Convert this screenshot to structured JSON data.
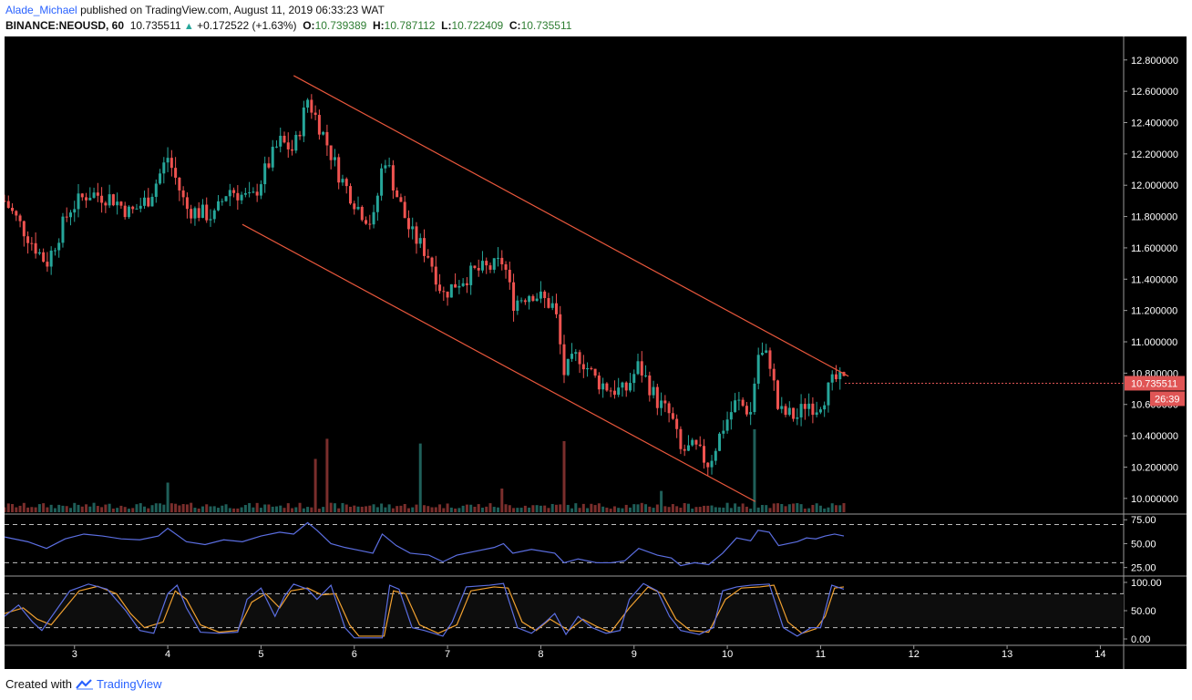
{
  "header": {
    "author": "Alade_Michael",
    "published_text": "published on TradingView.com, August 11, 2019 06:33:23 WAT",
    "symbol": "BINANCE:NEOUSD, 60",
    "last": "10.735511",
    "change": "+0.172522 (+1.63%)",
    "o_label": "O:",
    "o_value": "10.739389",
    "h_label": "H:",
    "h_value": "10.787112",
    "l_label": "L:",
    "l_value": "10.722409",
    "c_label": "C:",
    "c_value": "10.735511"
  },
  "footer": {
    "created_with": "Created with",
    "brand": "TradingView"
  },
  "colors": {
    "background": "#000000",
    "up": "#26a69a",
    "down": "#ef5350",
    "channel": "#e8573c",
    "rsi": "#5b6ee1",
    "stoch_k": "#5b6ee1",
    "stoch_d": "#f0a030",
    "price_tag": "#e05555"
  },
  "chart_data": {
    "type": "candlestick",
    "title": "BINANCE:NEOUSD, 60",
    "price_axis": {
      "ylim": [
        9.9,
        12.95
      ],
      "ticks": [
        "12.800000",
        "12.600000",
        "12.400000",
        "12.200000",
        "12.000000",
        "11.800000",
        "11.600000",
        "11.400000",
        "11.200000",
        "11.000000",
        "10.800000",
        "10.600000",
        "10.400000",
        "10.200000",
        "10.000000"
      ]
    },
    "last_price_tag": "10.735511",
    "countdown_tag": "26:39",
    "x_axis": {
      "ticks": [
        "3",
        "4",
        "5",
        "6",
        "7",
        "8",
        "9",
        "10",
        "11",
        "12",
        "13",
        "14"
      ],
      "xlim": [
        2.25,
        14.25
      ]
    },
    "close_path": [
      [
        2.25,
        11.9
      ],
      [
        2.45,
        11.72
      ],
      [
        2.7,
        11.5
      ],
      [
        2.95,
        11.85
      ],
      [
        3.15,
        11.95
      ],
      [
        3.4,
        11.92
      ],
      [
        3.6,
        11.82
      ],
      [
        3.8,
        11.92
      ],
      [
        4.0,
        12.18
      ],
      [
        4.2,
        11.85
      ],
      [
        4.5,
        11.8
      ],
      [
        4.65,
        11.98
      ],
      [
        4.9,
        11.9
      ],
      [
        5.05,
        12.1
      ],
      [
        5.2,
        12.28
      ],
      [
        5.35,
        12.22
      ],
      [
        5.5,
        12.55
      ],
      [
        5.65,
        12.35
      ],
      [
        5.85,
        12.05
      ],
      [
        6.05,
        11.85
      ],
      [
        6.2,
        11.75
      ],
      [
        6.32,
        12.2
      ],
      [
        6.45,
        11.95
      ],
      [
        6.6,
        11.7
      ],
      [
        6.8,
        11.55
      ],
      [
        6.95,
        11.3
      ],
      [
        7.1,
        11.38
      ],
      [
        7.3,
        11.45
      ],
      [
        7.5,
        11.48
      ],
      [
        7.6,
        11.52
      ],
      [
        7.7,
        11.25
      ],
      [
        7.9,
        11.32
      ],
      [
        8.15,
        11.22
      ],
      [
        8.25,
        10.8
      ],
      [
        8.4,
        10.92
      ],
      [
        8.6,
        10.75
      ],
      [
        8.75,
        10.7
      ],
      [
        8.9,
        10.68
      ],
      [
        9.05,
        10.85
      ],
      [
        9.25,
        10.62
      ],
      [
        9.4,
        10.52
      ],
      [
        9.5,
        10.3
      ],
      [
        9.65,
        10.32
      ],
      [
        9.8,
        10.22
      ],
      [
        9.95,
        10.45
      ],
      [
        10.1,
        10.62
      ],
      [
        10.25,
        10.55
      ],
      [
        10.33,
        10.92
      ],
      [
        10.45,
        10.9
      ],
      [
        10.55,
        10.55
      ],
      [
        10.75,
        10.52
      ],
      [
        10.85,
        10.62
      ],
      [
        10.95,
        10.58
      ],
      [
        11.05,
        10.66
      ],
      [
        11.15,
        10.76
      ],
      [
        11.25,
        10.74
      ]
    ],
    "volume_spikes": [
      [
        4.0,
        0.25
      ],
      [
        5.6,
        0.45
      ],
      [
        5.7,
        0.62
      ],
      [
        6.72,
        0.58
      ],
      [
        8.23,
        0.6
      ],
      [
        10.3,
        0.7
      ],
      [
        7.6,
        0.2
      ],
      [
        9.3,
        0.18
      ]
    ],
    "channel_lines": {
      "upper": [
        [
          5.35,
          12.7
        ],
        [
          11.3,
          10.78
        ]
      ],
      "lower": [
        [
          4.8,
          11.75
        ],
        [
          10.3,
          9.98
        ]
      ]
    },
    "rsi": {
      "ticks": [
        "75.00",
        "50.00",
        "25.00"
      ],
      "ylim": [
        18,
        80
      ],
      "bands": [
        70,
        30
      ],
      "path": [
        [
          2.25,
          57
        ],
        [
          2.5,
          52
        ],
        [
          2.7,
          45
        ],
        [
          2.9,
          55
        ],
        [
          3.1,
          60
        ],
        [
          3.3,
          58
        ],
        [
          3.5,
          55
        ],
        [
          3.7,
          54
        ],
        [
          3.9,
          58
        ],
        [
          4.0,
          66
        ],
        [
          4.2,
          52
        ],
        [
          4.4,
          49
        ],
        [
          4.6,
          54
        ],
        [
          4.8,
          52
        ],
        [
          5.0,
          58
        ],
        [
          5.2,
          62
        ],
        [
          5.35,
          60
        ],
        [
          5.5,
          72
        ],
        [
          5.6,
          64
        ],
        [
          5.75,
          50
        ],
        [
          5.9,
          46
        ],
        [
          6.1,
          42
        ],
        [
          6.2,
          40
        ],
        [
          6.3,
          60
        ],
        [
          6.45,
          48
        ],
        [
          6.6,
          40
        ],
        [
          6.8,
          38
        ],
        [
          6.95,
          31
        ],
        [
          7.1,
          38
        ],
        [
          7.3,
          42
        ],
        [
          7.5,
          46
        ],
        [
          7.6,
          50
        ],
        [
          7.7,
          40
        ],
        [
          7.9,
          44
        ],
        [
          8.15,
          40
        ],
        [
          8.25,
          30
        ],
        [
          8.4,
          34
        ],
        [
          8.6,
          30
        ],
        [
          8.75,
          30
        ],
        [
          8.9,
          32
        ],
        [
          9.05,
          45
        ],
        [
          9.25,
          38
        ],
        [
          9.4,
          35
        ],
        [
          9.5,
          27
        ],
        [
          9.65,
          30
        ],
        [
          9.8,
          28
        ],
        [
          9.95,
          40
        ],
        [
          10.1,
          56
        ],
        [
          10.25,
          53
        ],
        [
          10.33,
          64
        ],
        [
          10.45,
          62
        ],
        [
          10.55,
          48
        ],
        [
          10.75,
          52
        ],
        [
          10.85,
          56
        ],
        [
          10.95,
          55
        ],
        [
          11.05,
          58
        ],
        [
          11.15,
          60
        ],
        [
          11.25,
          58
        ]
      ]
    },
    "stoch": {
      "ticks": [
        "100.00",
        "50.00",
        "0.00"
      ],
      "ylim": [
        -8,
        108
      ],
      "bands": [
        80,
        20
      ],
      "k_path": [
        [
          2.25,
          40
        ],
        [
          2.4,
          60
        ],
        [
          2.55,
          30
        ],
        [
          2.65,
          15
        ],
        [
          2.8,
          50
        ],
        [
          2.95,
          85
        ],
        [
          3.15,
          97
        ],
        [
          3.35,
          88
        ],
        [
          3.55,
          50
        ],
        [
          3.7,
          15
        ],
        [
          3.85,
          10
        ],
        [
          4.0,
          80
        ],
        [
          4.1,
          95
        ],
        [
          4.2,
          55
        ],
        [
          4.35,
          12
        ],
        [
          4.55,
          10
        ],
        [
          4.75,
          12
        ],
        [
          4.85,
          70
        ],
        [
          5.0,
          90
        ],
        [
          5.15,
          40
        ],
        [
          5.25,
          75
        ],
        [
          5.35,
          97
        ],
        [
          5.5,
          88
        ],
        [
          5.6,
          70
        ],
        [
          5.75,
          95
        ],
        [
          5.9,
          20
        ],
        [
          6.0,
          2
        ],
        [
          6.3,
          2
        ],
        [
          6.38,
          95
        ],
        [
          6.48,
          88
        ],
        [
          6.62,
          20
        ],
        [
          6.75,
          15
        ],
        [
          6.95,
          5
        ],
        [
          7.05,
          30
        ],
        [
          7.2,
          92
        ],
        [
          7.45,
          95
        ],
        [
          7.6,
          98
        ],
        [
          7.75,
          20
        ],
        [
          7.9,
          10
        ],
        [
          8.05,
          30
        ],
        [
          8.15,
          45
        ],
        [
          8.27,
          8
        ],
        [
          8.4,
          40
        ],
        [
          8.55,
          20
        ],
        [
          8.7,
          10
        ],
        [
          8.85,
          15
        ],
        [
          8.95,
          70
        ],
        [
          9.1,
          98
        ],
        [
          9.25,
          85
        ],
        [
          9.38,
          40
        ],
        [
          9.5,
          15
        ],
        [
          9.7,
          8
        ],
        [
          9.85,
          20
        ],
        [
          9.95,
          85
        ],
        [
          10.1,
          92
        ],
        [
          10.25,
          95
        ],
        [
          10.45,
          97
        ],
        [
          10.6,
          20
        ],
        [
          10.75,
          5
        ],
        [
          10.9,
          20
        ],
        [
          11.0,
          20
        ],
        [
          11.12,
          95
        ],
        [
          11.25,
          88
        ]
      ],
      "d_path": [
        [
          2.25,
          45
        ],
        [
          2.45,
          55
        ],
        [
          2.6,
          35
        ],
        [
          2.75,
          25
        ],
        [
          2.9,
          55
        ],
        [
          3.05,
          85
        ],
        [
          3.25,
          93
        ],
        [
          3.45,
          80
        ],
        [
          3.6,
          45
        ],
        [
          3.75,
          20
        ],
        [
          3.95,
          30
        ],
        [
          4.08,
          85
        ],
        [
          4.2,
          70
        ],
        [
          4.35,
          25
        ],
        [
          4.55,
          12
        ],
        [
          4.75,
          15
        ],
        [
          4.9,
          65
        ],
        [
          5.05,
          80
        ],
        [
          5.2,
          55
        ],
        [
          5.32,
          85
        ],
        [
          5.5,
          90
        ],
        [
          5.65,
          78
        ],
        [
          5.8,
          80
        ],
        [
          5.95,
          25
        ],
        [
          6.05,
          5
        ],
        [
          6.32,
          5
        ],
        [
          6.42,
          85
        ],
        [
          6.55,
          80
        ],
        [
          6.7,
          25
        ],
        [
          6.9,
          10
        ],
        [
          7.1,
          25
        ],
        [
          7.25,
          85
        ],
        [
          7.5,
          92
        ],
        [
          7.65,
          90
        ],
        [
          7.8,
          30
        ],
        [
          7.95,
          15
        ],
        [
          8.1,
          35
        ],
        [
          8.3,
          15
        ],
        [
          8.45,
          35
        ],
        [
          8.6,
          22
        ],
        [
          8.75,
          12
        ],
        [
          8.95,
          55
        ],
        [
          9.15,
          92
        ],
        [
          9.3,
          80
        ],
        [
          9.45,
          35
        ],
        [
          9.6,
          15
        ],
        [
          9.8,
          12
        ],
        [
          9.98,
          70
        ],
        [
          10.15,
          90
        ],
        [
          10.35,
          92
        ],
        [
          10.5,
          95
        ],
        [
          10.65,
          30
        ],
        [
          10.8,
          10
        ],
        [
          10.95,
          18
        ],
        [
          11.05,
          40
        ],
        [
          11.15,
          90
        ],
        [
          11.25,
          92
        ]
      ]
    }
  }
}
